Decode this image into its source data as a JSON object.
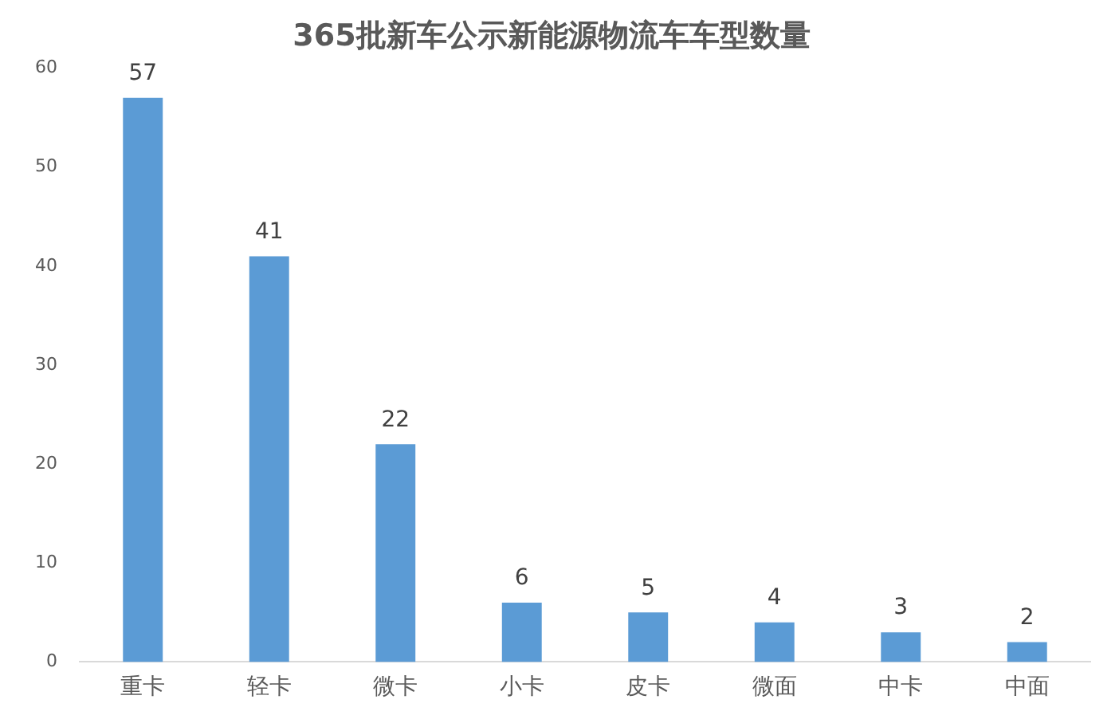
{
  "chart_data": {
    "type": "bar",
    "title": "365批新车公示新能源物流车车型数量",
    "categories": [
      "重卡",
      "轻卡",
      "微卡",
      "小卡",
      "皮卡",
      "微面",
      "中卡",
      "中面"
    ],
    "values": [
      57,
      41,
      22,
      6,
      5,
      4,
      3,
      2
    ],
    "color": "#5b9bd5",
    "ylim": [
      0,
      60
    ],
    "yticks": [
      0,
      10,
      20,
      30,
      40,
      50,
      60
    ],
    "grid": false,
    "legend": false,
    "data_labels": true
  }
}
